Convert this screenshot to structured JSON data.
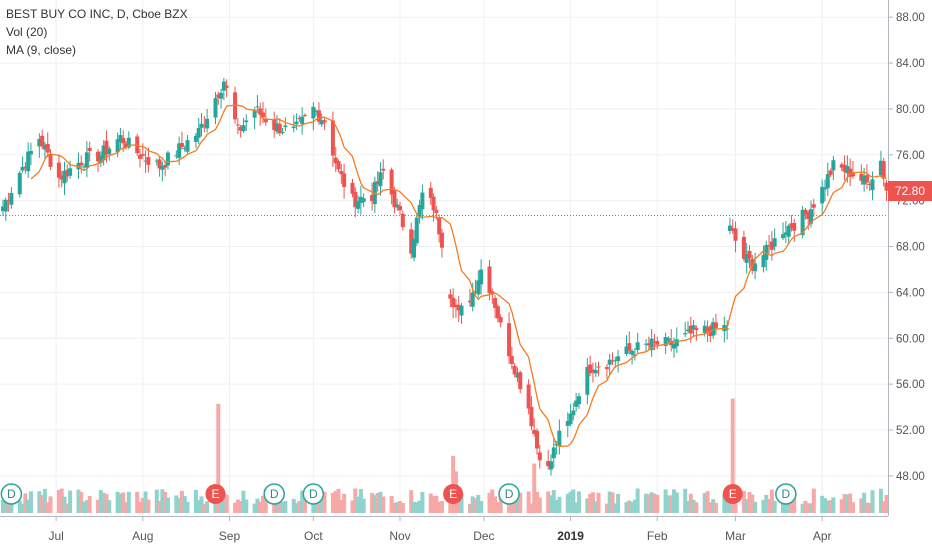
{
  "legend": {
    "symbol": "BEST BUY CO INC, D, Cboe BZX",
    "volume": "Vol (20)",
    "ma": "MA (9, close)"
  },
  "last_price_label": "72.80",
  "colors": {
    "up": "#26a69a",
    "down": "#ef5350",
    "up_volume": "#8fd3cc",
    "down_volume": "#f7a9a7",
    "ma": "#f57c1f",
    "grid": "#eef0f3",
    "axis_text": "#555555"
  },
  "chart_data": {
    "type": "candlestick",
    "x_ticks": [
      "Jul",
      "Aug",
      "Sep",
      "Oct",
      "Nov",
      "Dec",
      "2019",
      "Feb",
      "Mar",
      "Apr"
    ],
    "y_ticks": [
      "88.00",
      "84.00",
      "80.00",
      "76.00",
      "72.00",
      "68.00",
      "64.00",
      "60.00",
      "56.00",
      "52.00",
      "48.00"
    ],
    "ylim": [
      44.5,
      89.5
    ],
    "last_price": 72.8,
    "grid": true,
    "price_keypoints": [
      [
        "2018-06-12",
        71.5
      ],
      [
        "2018-06-18",
        74.5
      ],
      [
        "2018-06-25",
        77.5
      ],
      [
        "2018-07-02",
        74.0
      ],
      [
        "2018-07-10",
        75.5
      ],
      [
        "2018-07-17",
        76.0
      ],
      [
        "2018-07-24",
        77.5
      ],
      [
        "2018-07-31",
        76.0
      ],
      [
        "2018-08-07",
        75.0
      ],
      [
        "2018-08-14",
        76.5
      ],
      [
        "2018-08-21",
        78.0
      ],
      [
        "2018-08-27",
        81.0
      ],
      [
        "2018-08-30",
        82.5
      ],
      [
        "2018-09-04",
        78.0
      ],
      [
        "2018-09-10",
        80.0
      ],
      [
        "2018-09-17",
        78.5
      ],
      [
        "2018-09-24",
        78.0
      ],
      [
        "2018-10-01",
        80.0
      ],
      [
        "2018-10-05",
        79.0
      ],
      [
        "2018-10-10",
        74.5
      ],
      [
        "2018-10-15",
        72.0
      ],
      [
        "2018-10-22",
        72.5
      ],
      [
        "2018-10-26",
        74.5
      ],
      [
        "2018-11-02",
        70.0
      ],
      [
        "2018-11-05",
        68.0
      ],
      [
        "2018-11-09",
        72.5
      ],
      [
        "2018-11-13",
        71.5
      ],
      [
        "2018-11-16",
        68.5
      ],
      [
        "2018-11-19",
        64.0
      ],
      [
        "2018-11-22",
        62.0
      ],
      [
        "2018-11-27",
        64.0
      ],
      [
        "2018-11-30",
        66.0
      ],
      [
        "2018-12-04",
        64.0
      ],
      [
        "2018-12-07",
        61.0
      ],
      [
        "2018-12-12",
        57.5
      ],
      [
        "2018-12-17",
        54.0
      ],
      [
        "2018-12-20",
        50.5
      ],
      [
        "2018-12-24",
        48.5
      ],
      [
        "2018-12-27",
        51.0
      ],
      [
        "2018-12-31",
        52.5
      ],
      [
        "2019-01-04",
        55.5
      ],
      [
        "2019-01-08",
        57.5
      ],
      [
        "2019-01-15",
        58.0
      ],
      [
        "2019-01-23",
        59.0
      ],
      [
        "2019-01-31",
        59.5
      ],
      [
        "2019-02-07",
        59.5
      ],
      [
        "2019-02-14",
        60.5
      ],
      [
        "2019-02-26",
        61.0
      ],
      [
        "2019-02-27",
        69.5
      ],
      [
        "2019-03-04",
        67.0
      ],
      [
        "2019-03-07",
        66.5
      ],
      [
        "2019-03-12",
        67.5
      ],
      [
        "2019-03-18",
        69.5
      ],
      [
        "2019-03-22",
        70.0
      ],
      [
        "2019-03-27",
        71.0
      ],
      [
        "2019-04-01",
        73.0
      ],
      [
        "2019-04-05",
        75.0
      ],
      [
        "2019-04-11",
        74.5
      ],
      [
        "2019-04-17",
        73.5
      ],
      [
        "2019-04-22",
        75.5
      ],
      [
        "2019-04-24",
        73.0
      ]
    ],
    "ma_period": 9,
    "volume_spikes": [
      {
        "date": "2018-08-28",
        "relative_volume": 4.2
      },
      {
        "date": "2018-11-20",
        "relative_volume": 2.2
      },
      {
        "date": "2018-11-21",
        "relative_volume": 1.6
      },
      {
        "date": "2018-12-19",
        "relative_volume": 1.9
      },
      {
        "date": "2019-02-28",
        "relative_volume": 4.4
      }
    ],
    "events": [
      {
        "date": "2018-06-15",
        "label": "D"
      },
      {
        "date": "2018-08-27",
        "label": "E"
      },
      {
        "date": "2018-09-17",
        "label": "D"
      },
      {
        "date": "2018-10-01",
        "label": "D"
      },
      {
        "date": "2018-11-20",
        "label": "E"
      },
      {
        "date": "2018-12-10",
        "label": "D"
      },
      {
        "date": "2019-02-28",
        "label": "E"
      },
      {
        "date": "2019-03-19",
        "label": "D"
      }
    ]
  }
}
